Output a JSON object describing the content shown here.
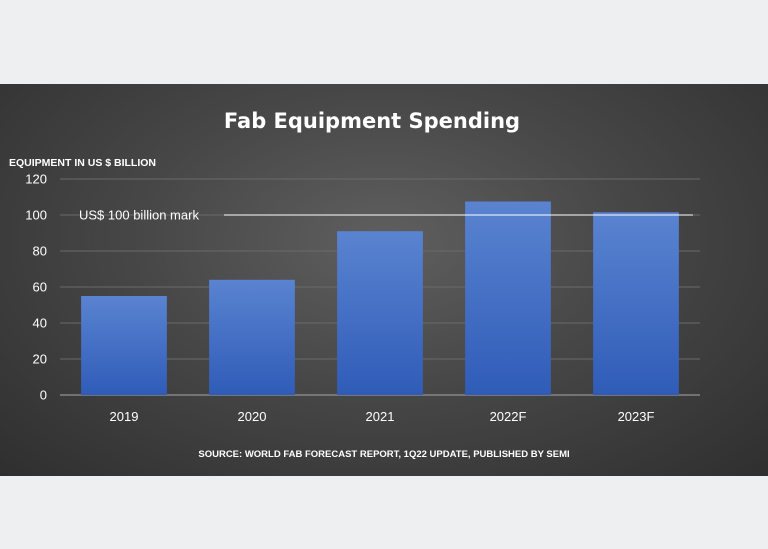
{
  "chart_data": {
    "type": "bar",
    "title": "Fab Equipment Spending",
    "ylabel": "EQUIPMENT IN US $ BILLION",
    "xlabel": "",
    "categories": [
      "2019",
      "2020",
      "2021",
      "2022F",
      "2023F"
    ],
    "values": [
      55,
      64,
      91,
      107.5,
      101.5
    ],
    "ylim": [
      0,
      120
    ],
    "yticks": [
      "0",
      "20",
      "40",
      "60",
      "80",
      "100",
      "120"
    ],
    "grid": true,
    "bar_color": "#4472c4",
    "reference_line": {
      "value": 100,
      "label": "US$ 100 billion mark",
      "color": "#ffffff"
    },
    "source": "SOURCE: WORLD FAB FORECAST REPORT, 1Q22 UPDATE, PUBLISHED BY SEMI"
  }
}
